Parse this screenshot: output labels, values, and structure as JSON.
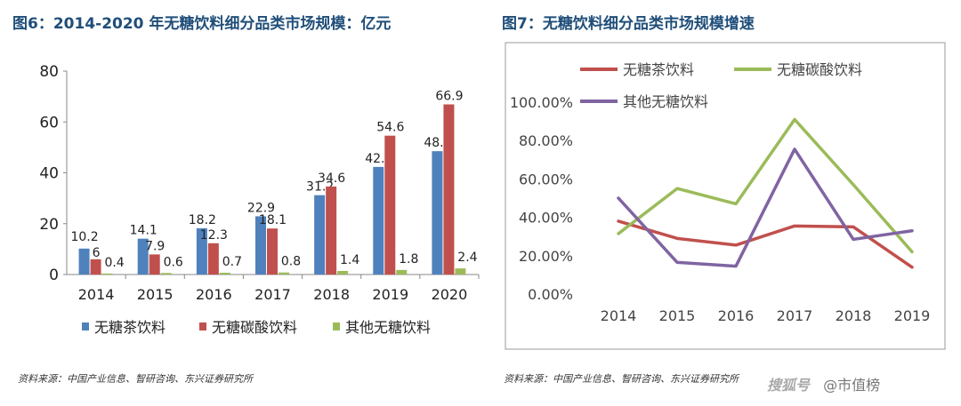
{
  "left": {
    "title": "图6：2014-2020 年无糖饮料细分品类市场规模：亿元",
    "source": "资料来源：中国产业信息、智研咨询、东兴证券研究所"
  },
  "right": {
    "title": "图7：无糖饮料细分品类市场规模增速",
    "source": "资料来源：中国产业信息、智研咨询、东兴证券研究所"
  },
  "watermark": {
    "logo": "搜狐号",
    "text": "@市值榜"
  },
  "colors": {
    "tea": "#4f81bd",
    "soda": "#c0504d",
    "other": "#9bbb59",
    "purple": "#8064a2",
    "title": "#1f4e79"
  },
  "chart_data": [
    {
      "type": "bar",
      "categories": [
        "2014",
        "2015",
        "2016",
        "2017",
        "2018",
        "2019",
        "2020"
      ],
      "ylim": [
        0,
        80
      ],
      "yticks": [
        0,
        20,
        40,
        60,
        80
      ],
      "legend_position": "bottom",
      "grid": false,
      "series": [
        {
          "name": "无糖茶饮料",
          "color": "#4f81bd",
          "values": [
            10.2,
            14.1,
            18.2,
            22.9,
            31.2,
            42.3,
            48.5
          ],
          "labels": [
            "10.2",
            "14.1",
            "18.2",
            "22.9",
            "31.2",
            "42.3",
            "48.5"
          ]
        },
        {
          "name": "无糖碳酸饮料",
          "color": "#c0504d",
          "values": [
            6,
            7.9,
            12.3,
            18.1,
            34.6,
            54.6,
            66.9
          ],
          "labels": [
            "6",
            "7.9",
            "12.3",
            "18.1",
            "34.6",
            "54.6",
            "66.9"
          ]
        },
        {
          "name": "其他无糖饮料",
          "color": "#9bbb59",
          "values": [
            0.4,
            0.6,
            0.7,
            0.8,
            1.4,
            1.8,
            2.4
          ],
          "labels": [
            "0.4",
            "0.6",
            "0.7",
            "0.8",
            "1.4",
            "1.8",
            "2.4"
          ]
        }
      ]
    },
    {
      "type": "line",
      "categories": [
        "2014",
        "2015",
        "2016",
        "2017",
        "2018",
        "2019"
      ],
      "ylim": [
        0,
        100
      ],
      "yticks": [
        "0.00%",
        "20.00%",
        "40.00%",
        "60.00%",
        "80.00%",
        "100.00%"
      ],
      "legend_position": "top",
      "grid": false,
      "series": [
        {
          "name": "无糖茶饮料",
          "color": "#c0504d",
          "values": [
            38,
            29,
            25.5,
            35.5,
            35,
            14
          ]
        },
        {
          "name": "无糖碳酸饮料",
          "color": "#9bbb59",
          "values": [
            31.5,
            55,
            47,
            91,
            57,
            22
          ]
        },
        {
          "name": "其他无糖饮料",
          "color": "#8064a2",
          "values": [
            50,
            16.5,
            14.5,
            75.5,
            28.5,
            33
          ]
        }
      ]
    }
  ]
}
